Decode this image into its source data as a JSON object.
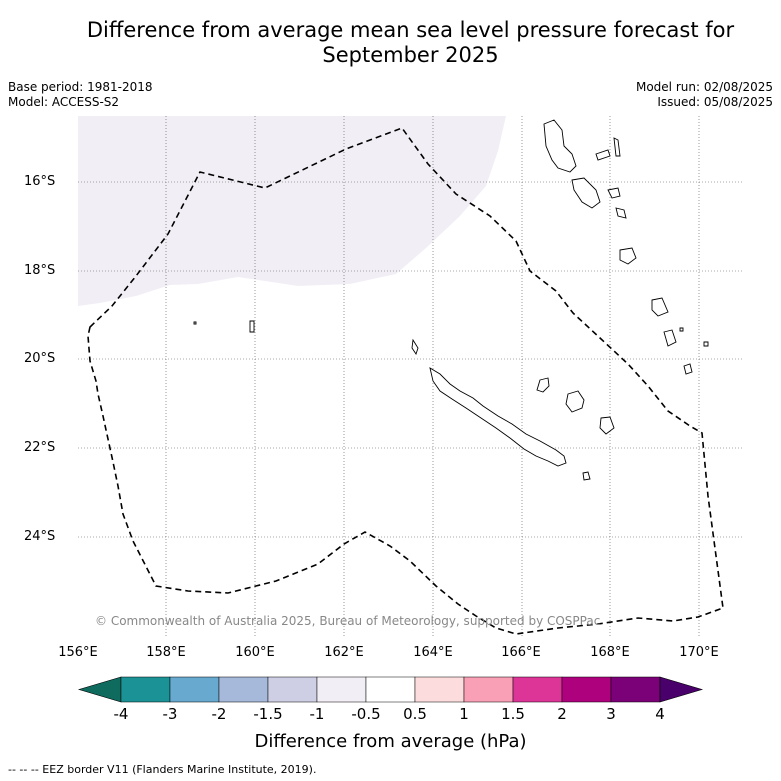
{
  "title_line1": "Difference from average mean sea level pressure forecast for",
  "title_line2": "September 2025",
  "base_period": "Base period: 1981-2018",
  "model": "Model: ACCESS-S2",
  "model_run": "Model run: 02/08/2025",
  "issued": "Issued: 05/08/2025",
  "lat_labels": [
    "16°S",
    "18°S",
    "20°S",
    "22°S",
    "24°S"
  ],
  "lon_labels": [
    "156°E",
    "158°E",
    "160°E",
    "162°E",
    "164°E",
    "166°E",
    "168°E",
    "170°E"
  ],
  "copyright": "© Commonwealth of Australia 2025, Bureau of Meteorology, supported by COSPPac",
  "colorbar": {
    "ticks": [
      "-4",
      "-3",
      "-2",
      "-1.5",
      "-1",
      "-0.5",
      "0.5",
      "1",
      "1.5",
      "2",
      "3",
      "4"
    ],
    "colors": [
      "#1a9296",
      "#67a9cf",
      "#a7b9da",
      "#cecfe5",
      "#f2eef5",
      "#ffffff",
      "#fddcdd",
      "#f99fb6",
      "#dd3497",
      "#ae017e",
      "#7a0177"
    ],
    "under_color": "#0e6b5e",
    "over_color": "#49006a",
    "label": "Difference from average (hPa)"
  },
  "footer": "--  --  -- EEZ border V11 (Flanders Marine Institute, 2019).",
  "anomaly_shading_color": "#f2eef5"
}
